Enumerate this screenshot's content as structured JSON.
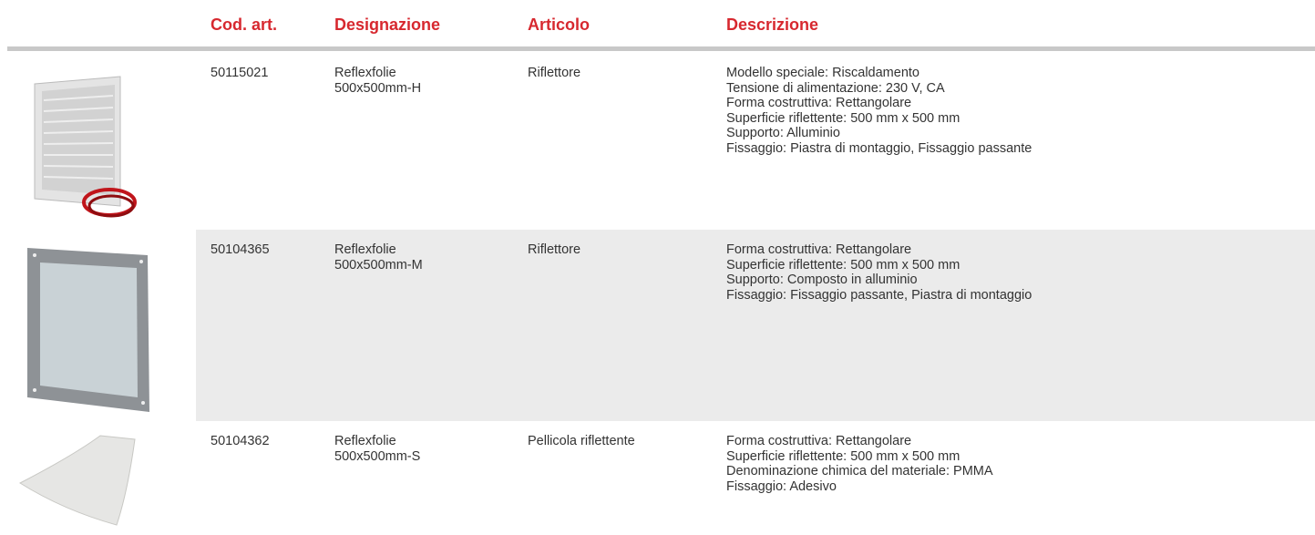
{
  "header": {
    "columns": [
      "Cod. art.",
      "Designazione",
      "Articolo",
      "Descrizione"
    ]
  },
  "table": {
    "rows": [
      {
        "code": "50115021",
        "designation": [
          "Reflexfolie",
          "500x500mm-H"
        ],
        "article": "Riflettore",
        "description": [
          "Modello speciale: Riscaldamento",
          "Tensione di alimentazione: 230 V, CA",
          "Forma costruttiva: Rettangolare",
          "Superficie riflettente: 500 mm x 500 mm",
          "Supporto: Alluminio",
          "Fissaggio: Piastra di montaggio, Fissaggio passante"
        ]
      },
      {
        "code": "50104365",
        "designation": [
          "Reflexfolie",
          "500x500mm-M"
        ],
        "article": "Riflettore",
        "description": [
          "Forma costruttiva: Rettangolare",
          "Superficie riflettente: 500 mm x 500 mm",
          "Supporto: Composto in alluminio",
          "Fissaggio: Fissaggio passante, Piastra di montaggio"
        ]
      },
      {
        "code": "50104362",
        "designation": [
          "Reflexfolie",
          "500x500mm-S"
        ],
        "article": "Pellicola riflettente",
        "description": [
          "Forma costruttiva: Rettangolare",
          "Superficie riflettente: 500 mm x 500 mm",
          "Denominazione chimica del materiale: PMMA",
          "Fissaggio: Adesivo"
        ]
      }
    ]
  }
}
